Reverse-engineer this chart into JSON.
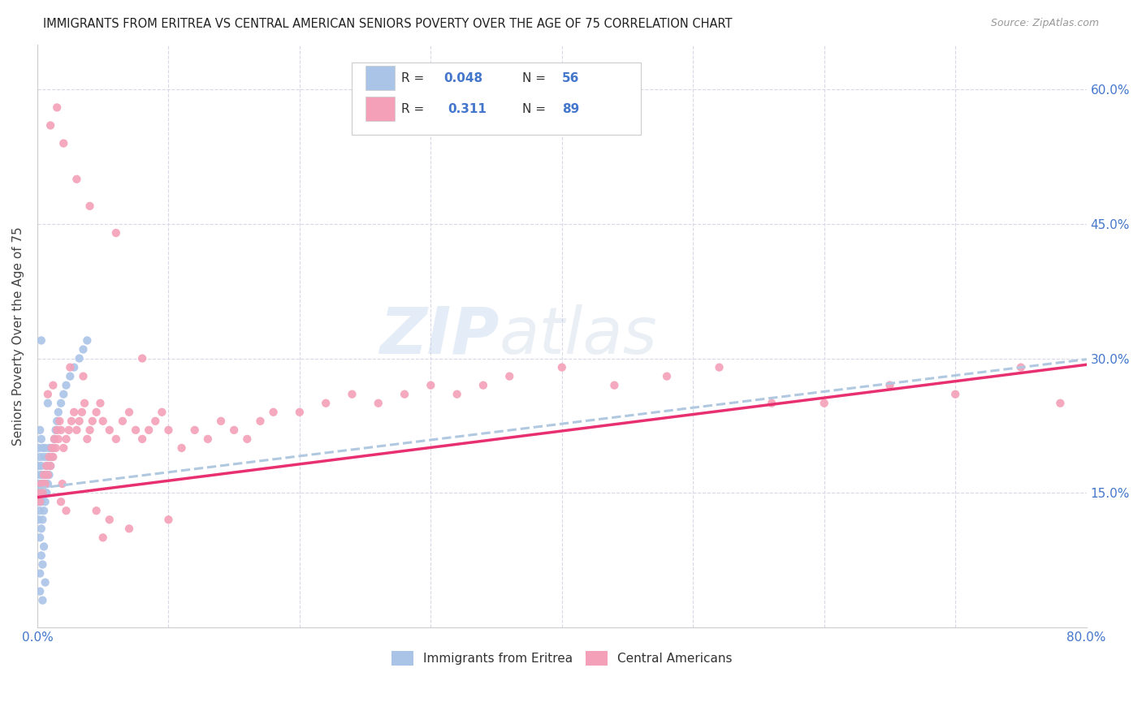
{
  "title": "IMMIGRANTS FROM ERITREA VS CENTRAL AMERICAN SENIORS POVERTY OVER THE AGE OF 75 CORRELATION CHART",
  "source": "Source: ZipAtlas.com",
  "ylabel": "Seniors Poverty Over the Age of 75",
  "xlim": [
    0.0,
    0.8
  ],
  "ylim": [
    0.0,
    0.65
  ],
  "color_blue": "#aac4e8",
  "color_pink": "#f4a0b8",
  "trendline_blue": "#b0c8e0",
  "trendline_pink": "#e83070",
  "watermark_zip": "ZIP",
  "watermark_atlas": "atlas",
  "background_color": "#ffffff",
  "grid_color": "#d8d8e8",
  "blue_x": [
    0.001,
    0.001,
    0.001,
    0.001,
    0.001,
    0.002,
    0.002,
    0.002,
    0.002,
    0.002,
    0.002,
    0.003,
    0.003,
    0.003,
    0.003,
    0.003,
    0.004,
    0.004,
    0.004,
    0.004,
    0.005,
    0.005,
    0.005,
    0.006,
    0.006,
    0.006,
    0.007,
    0.007,
    0.008,
    0.008,
    0.009,
    0.009,
    0.01,
    0.011,
    0.012,
    0.013,
    0.014,
    0.015,
    0.016,
    0.018,
    0.02,
    0.022,
    0.025,
    0.028,
    0.032,
    0.035,
    0.038,
    0.002,
    0.003,
    0.004,
    0.005,
    0.006,
    0.003,
    0.008,
    0.002,
    0.004
  ],
  "blue_y": [
    0.12,
    0.14,
    0.16,
    0.18,
    0.2,
    0.1,
    0.13,
    0.15,
    0.17,
    0.19,
    0.22,
    0.11,
    0.14,
    0.16,
    0.18,
    0.21,
    0.12,
    0.15,
    0.17,
    0.2,
    0.13,
    0.16,
    0.19,
    0.14,
    0.17,
    0.2,
    0.15,
    0.18,
    0.16,
    0.19,
    0.17,
    0.2,
    0.18,
    0.19,
    0.2,
    0.21,
    0.22,
    0.23,
    0.24,
    0.25,
    0.26,
    0.27,
    0.28,
    0.29,
    0.3,
    0.31,
    0.32,
    0.06,
    0.08,
    0.07,
    0.09,
    0.05,
    0.32,
    0.25,
    0.04,
    0.03
  ],
  "pink_x": [
    0.001,
    0.002,
    0.003,
    0.004,
    0.005,
    0.006,
    0.007,
    0.008,
    0.009,
    0.01,
    0.011,
    0.012,
    0.013,
    0.014,
    0.015,
    0.016,
    0.017,
    0.018,
    0.019,
    0.02,
    0.022,
    0.024,
    0.026,
    0.028,
    0.03,
    0.032,
    0.034,
    0.036,
    0.038,
    0.04,
    0.042,
    0.045,
    0.048,
    0.05,
    0.055,
    0.06,
    0.065,
    0.07,
    0.075,
    0.08,
    0.085,
    0.09,
    0.095,
    0.1,
    0.11,
    0.12,
    0.13,
    0.14,
    0.15,
    0.16,
    0.17,
    0.18,
    0.2,
    0.22,
    0.24,
    0.26,
    0.28,
    0.3,
    0.32,
    0.34,
    0.36,
    0.4,
    0.44,
    0.48,
    0.52,
    0.56,
    0.6,
    0.65,
    0.7,
    0.75,
    0.78,
    0.01,
    0.015,
    0.02,
    0.03,
    0.04,
    0.06,
    0.08,
    0.1,
    0.025,
    0.035,
    0.05,
    0.07,
    0.045,
    0.055,
    0.012,
    0.008,
    0.018,
    0.022
  ],
  "pink_y": [
    0.15,
    0.14,
    0.16,
    0.15,
    0.17,
    0.16,
    0.18,
    0.17,
    0.19,
    0.18,
    0.2,
    0.19,
    0.21,
    0.2,
    0.22,
    0.21,
    0.23,
    0.22,
    0.16,
    0.2,
    0.21,
    0.22,
    0.23,
    0.24,
    0.22,
    0.23,
    0.24,
    0.25,
    0.21,
    0.22,
    0.23,
    0.24,
    0.25,
    0.23,
    0.22,
    0.21,
    0.23,
    0.24,
    0.22,
    0.21,
    0.22,
    0.23,
    0.24,
    0.22,
    0.2,
    0.22,
    0.21,
    0.23,
    0.22,
    0.21,
    0.23,
    0.24,
    0.24,
    0.25,
    0.26,
    0.25,
    0.26,
    0.27,
    0.26,
    0.27,
    0.28,
    0.29,
    0.27,
    0.28,
    0.29,
    0.25,
    0.25,
    0.27,
    0.26,
    0.29,
    0.25,
    0.56,
    0.58,
    0.54,
    0.5,
    0.47,
    0.44,
    0.3,
    0.12,
    0.29,
    0.28,
    0.1,
    0.11,
    0.13,
    0.12,
    0.27,
    0.26,
    0.14,
    0.13
  ]
}
